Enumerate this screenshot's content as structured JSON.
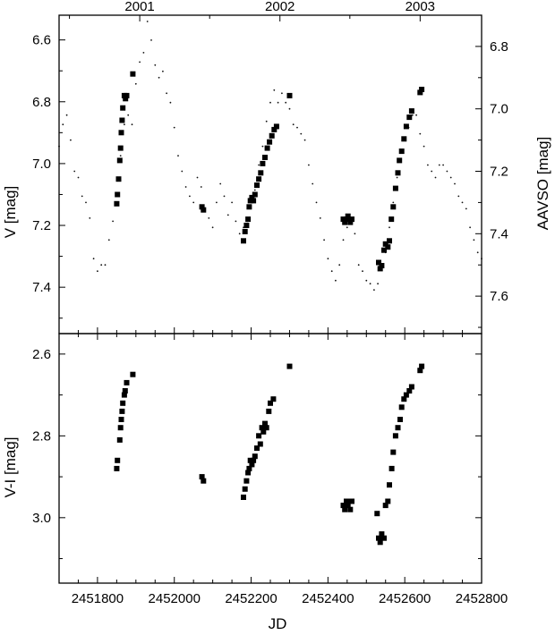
{
  "chart_data": [
    {
      "type": "scatter",
      "panel": "top",
      "ylabel": "V [mag]",
      "y2label": "AAVSO [mag]",
      "top_axis_labels": [
        "2001",
        "2002",
        "2003"
      ],
      "top_axis_jd": [
        2451910,
        2452275,
        2452640
      ],
      "xlim": [
        2451700,
        2452800
      ],
      "ylim": [
        7.55,
        6.52
      ],
      "y_inverted": true,
      "yticks": [
        "6.6",
        "6.8",
        "7.0",
        "7.2",
        "7.4"
      ],
      "y2lim": [
        7.72,
        6.7
      ],
      "y2ticks": [
        "6.8",
        "7.0",
        "7.2",
        "7.4",
        "7.6"
      ],
      "series": [
        {
          "marker": "square",
          "x": [
            2451850,
            2451852,
            2451855,
            2451858,
            2451860,
            2451862,
            2451864,
            2451866,
            2451870,
            2451873,
            2451876,
            2451892,
            2452072,
            2452076,
            2452180,
            2452184,
            2452188,
            2452192,
            2452195,
            2452198,
            2452202,
            2452206,
            2452210,
            2452215,
            2452220,
            2452225,
            2452230,
            2452236,
            2452242,
            2452248,
            2452254,
            2452260,
            2452266,
            2452300,
            2452440,
            2452444,
            2452448,
            2452452,
            2452458,
            2452462,
            2452532,
            2452536,
            2452540,
            2452546,
            2452550,
            2452556,
            2452560,
            2452565,
            2452570,
            2452576,
            2452582,
            2452586,
            2452592,
            2452598,
            2452604,
            2452612,
            2452618,
            2452640,
            2452644
          ],
          "y": [
            7.13,
            7.1,
            7.05,
            6.99,
            6.95,
            6.9,
            6.86,
            6.82,
            6.78,
            6.79,
            6.78,
            6.71,
            7.14,
            7.15,
            7.25,
            7.22,
            7.2,
            7.18,
            7.14,
            7.12,
            7.11,
            7.12,
            7.1,
            7.07,
            7.05,
            7.03,
            7.0,
            6.98,
            6.95,
            6.93,
            6.91,
            6.89,
            6.88,
            6.78,
            7.18,
            7.19,
            7.18,
            7.17,
            7.19,
            7.18,
            7.32,
            7.34,
            7.33,
            7.28,
            7.26,
            7.27,
            7.25,
            7.18,
            7.14,
            7.08,
            7.03,
            6.99,
            6.96,
            6.92,
            6.88,
            6.85,
            6.83,
            6.77,
            6.76
          ]
        },
        {
          "marker": "dot",
          "name": "AAVSO",
          "x": [
            2451700,
            2451710,
            2451720,
            2451730,
            2451740,
            2451750,
            2451760,
            2451770,
            2451780,
            2451790,
            2451800,
            2451810,
            2451820,
            2451830,
            2451840,
            2451850,
            2451860,
            2451870,
            2451880,
            2451890,
            2451900,
            2451910,
            2451920,
            2451930,
            2451940,
            2451950,
            2451960,
            2451970,
            2451980,
            2451990,
            2452000,
            2452010,
            2452020,
            2452030,
            2452040,
            2452050,
            2452060,
            2452070,
            2452080,
            2452090,
            2452100,
            2452110,
            2452120,
            2452130,
            2452140,
            2452150,
            2452160,
            2452170,
            2452180,
            2452190,
            2452200,
            2452210,
            2452220,
            2452230,
            2452240,
            2452250,
            2452260,
            2452270,
            2452280,
            2452290,
            2452300,
            2452310,
            2452320,
            2452330,
            2452340,
            2452350,
            2452360,
            2452370,
            2452380,
            2452390,
            2452400,
            2452410,
            2452420,
            2452430,
            2452440,
            2452450,
            2452460,
            2452470,
            2452480,
            2452490,
            2452500,
            2452510,
            2452520,
            2452530,
            2452540,
            2452550,
            2452560,
            2452570,
            2452580,
            2452590,
            2452600,
            2452610,
            2452620,
            2452630,
            2452640,
            2452650,
            2452660,
            2452670,
            2452680,
            2452690,
            2452700,
            2452710,
            2452720,
            2452730,
            2452740,
            2452750,
            2452760,
            2452770,
            2452780,
            2452790,
            2452800
          ],
          "y": [
            7.12,
            7.05,
            7.02,
            7.1,
            7.2,
            7.22,
            7.28,
            7.3,
            7.35,
            7.48,
            7.52,
            7.5,
            7.5,
            7.42,
            7.36,
            7.3,
            7.15,
            7.05,
            7.02,
            7.05,
            6.92,
            6.85,
            6.82,
            6.72,
            6.78,
            6.86,
            6.9,
            6.88,
            6.95,
            6.98,
            7.06,
            7.15,
            7.2,
            7.25,
            7.28,
            7.3,
            7.22,
            7.25,
            7.32,
            7.35,
            7.38,
            7.3,
            7.24,
            7.28,
            7.34,
            7.3,
            7.36,
            7.4,
            7.38,
            7.36,
            7.3,
            7.26,
            7.18,
            7.12,
            7.04,
            6.98,
            6.94,
            6.98,
            6.95,
            6.98,
            7.0,
            7.05,
            7.06,
            7.08,
            7.1,
            7.18,
            7.24,
            7.3,
            7.35,
            7.42,
            7.48,
            7.52,
            7.55,
            7.5,
            7.42,
            7.38,
            7.35,
            7.4,
            7.5,
            7.52,
            7.55,
            7.56,
            7.58,
            7.56,
            7.5,
            7.46,
            7.38,
            7.3,
            7.22,
            7.16,
            7.1,
            7.06,
            7.02,
            7.02,
            7.08,
            7.12,
            7.18,
            7.2,
            7.22,
            7.18,
            7.18,
            7.2,
            7.22,
            7.24,
            7.28,
            7.3,
            7.32,
            7.38,
            7.42,
            7.46,
            7.48
          ]
        }
      ]
    },
    {
      "type": "scatter",
      "panel": "bottom",
      "xlabel": "JD",
      "ylabel": "V-I [mag]",
      "xlim": [
        2451700,
        2452800
      ],
      "xticks": [
        "2451800",
        "2452000",
        "2452200",
        "2452400",
        "2452600",
        "2452800"
      ],
      "xtick_values": [
        2451800,
        2452000,
        2452200,
        2452400,
        2452600,
        2452800
      ],
      "ylim": [
        3.16,
        2.55
      ],
      "y_inverted": true,
      "yticks": [
        "2.6",
        "2.8",
        "3.0"
      ],
      "series": [
        {
          "marker": "square",
          "x": [
            2451850,
            2451852,
            2451858,
            2451860,
            2451862,
            2451864,
            2451866,
            2451870,
            2451872,
            2451876,
            2451892,
            2452072,
            2452076,
            2452180,
            2452184,
            2452188,
            2452192,
            2452195,
            2452198,
            2452202,
            2452206,
            2452210,
            2452215,
            2452220,
            2452224,
            2452228,
            2452232,
            2452236,
            2452240,
            2452246,
            2452250,
            2452258,
            2452300,
            2452440,
            2452444,
            2452448,
            2452452,
            2452458,
            2452462,
            2452528,
            2452532,
            2452536,
            2452540,
            2452546,
            2452550,
            2452556,
            2452560,
            2452566,
            2452570,
            2452576,
            2452582,
            2452588,
            2452592,
            2452598,
            2452604,
            2452612,
            2452618,
            2452640,
            2452644
          ],
          "y": [
            2.88,
            2.86,
            2.81,
            2.78,
            2.76,
            2.74,
            2.72,
            2.7,
            2.69,
            2.67,
            2.65,
            2.9,
            2.91,
            2.95,
            2.93,
            2.91,
            2.89,
            2.88,
            2.86,
            2.87,
            2.86,
            2.85,
            2.83,
            2.8,
            2.82,
            2.78,
            2.79,
            2.77,
            2.78,
            2.74,
            2.72,
            2.71,
            2.63,
            2.97,
            2.98,
            2.96,
            2.97,
            2.98,
            2.96,
            2.99,
            3.05,
            3.06,
            3.04,
            3.05,
            2.97,
            2.96,
            2.92,
            2.88,
            2.84,
            2.8,
            2.78,
            2.76,
            2.73,
            2.71,
            2.7,
            2.69,
            2.68,
            2.64,
            2.63
          ]
        }
      ]
    }
  ]
}
